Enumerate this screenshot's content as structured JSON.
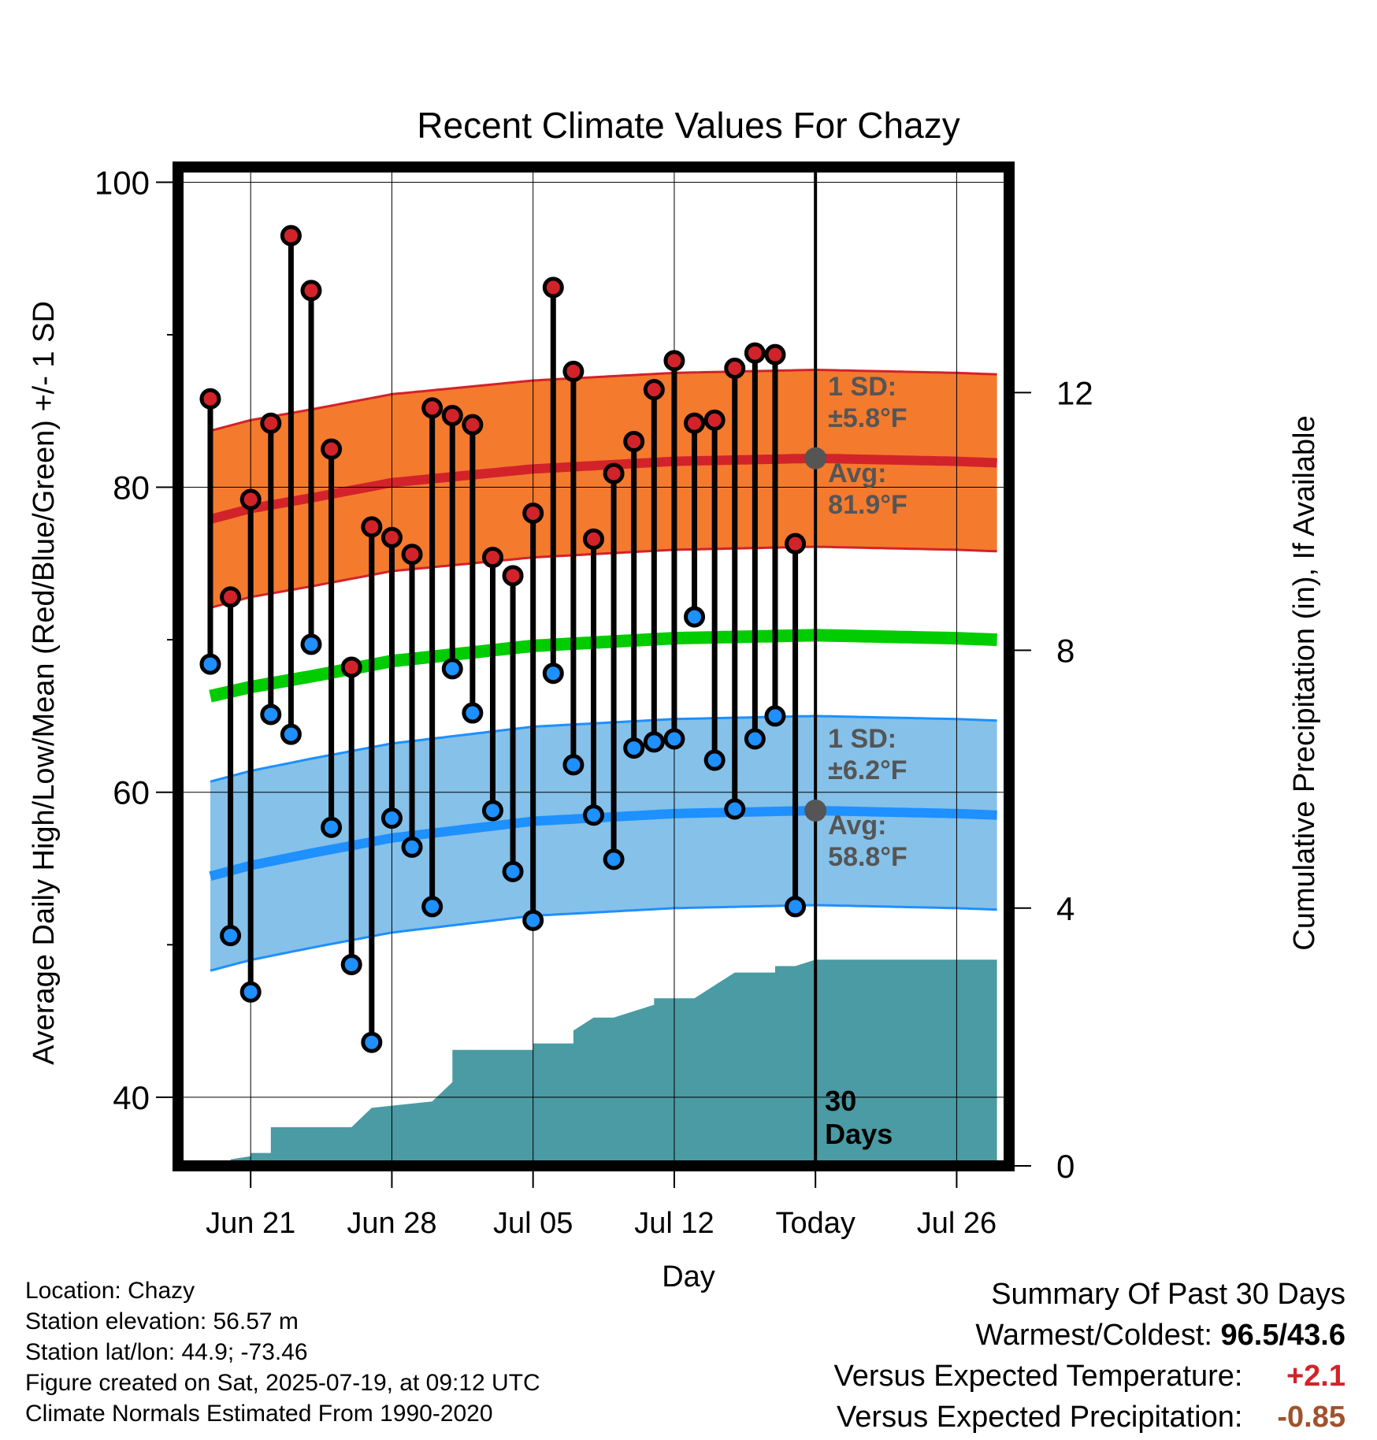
{
  "chart_data": {
    "type": "line",
    "title": "Recent Climate Values For Chazy",
    "xlabel": "Day",
    "ylabel": "Average Daily High/Low/Mean (Red/Blue/Green) +/- 1 SD",
    "y2label": "Cumulative Precipitation (in), If Available",
    "ylim": [
      35.5,
      101
    ],
    "y2lim": [
      0,
      15.5
    ],
    "xlim": [
      -3.6,
      37.6
    ],
    "yticks": [
      40,
      60,
      80,
      100
    ],
    "y2ticks": [
      0,
      4,
      8,
      12
    ],
    "xtick_positions": [
      0,
      7,
      14,
      21,
      28,
      35
    ],
    "xtick_labels": [
      "Jun 21",
      "Jun 28",
      "Jul 05",
      "Jul 12",
      "Today",
      "Jul 26"
    ],
    "grid": true,
    "today_index": 28,
    "today_marker_label": "30 Days",
    "high_obs": [
      85.8,
      72.8,
      79.2,
      84.2,
      96.5,
      92.9,
      82.5,
      68.2,
      77.4,
      76.7,
      75.6,
      85.2,
      84.7,
      84.1,
      75.4,
      74.2,
      78.3,
      93.1,
      87.6,
      76.6,
      80.9,
      83.0,
      86.4,
      88.3,
      84.2,
      84.4,
      87.8,
      88.8,
      88.7,
      76.3
    ],
    "low_obs": [
      68.4,
      50.6,
      46.9,
      65.1,
      63.8,
      69.7,
      57.7,
      48.7,
      43.6,
      58.3,
      56.4,
      52.5,
      68.1,
      65.2,
      58.8,
      54.8,
      51.6,
      67.8,
      61.8,
      58.5,
      55.6,
      62.9,
      63.3,
      63.5,
      71.5,
      62.1,
      58.9,
      63.5,
      65.0,
      52.5
    ],
    "normals_x": [
      -2,
      0,
      3,
      7,
      14,
      21,
      28,
      35,
      37
    ],
    "normal_high": [
      77.9,
      78.6,
      79.3,
      80.3,
      81.2,
      81.7,
      81.9,
      81.7,
      81.6
    ],
    "normal_low": [
      54.5,
      55.2,
      56.0,
      57.0,
      58.1,
      58.6,
      58.8,
      58.6,
      58.5
    ],
    "normal_mean": [
      66.3,
      66.9,
      67.6,
      68.6,
      69.6,
      70.1,
      70.3,
      70.1,
      70.0
    ],
    "sd_high": 5.8,
    "sd_low": 6.2,
    "precip_x": [
      -2,
      -1,
      -1,
      0,
      0,
      1,
      1,
      5,
      5,
      6,
      9,
      9,
      10,
      10,
      14,
      14,
      16,
      16,
      17,
      18,
      18,
      20,
      20,
      22,
      22,
      23,
      24,
      24,
      26,
      26,
      27,
      28,
      28,
      37
    ],
    "precip_cum": [
      0,
      0,
      0.1,
      0.15,
      0.2,
      0.2,
      0.6,
      0.6,
      0.6,
      0.9,
      1.0,
      1.0,
      1.3,
      1.8,
      1.8,
      1.9,
      1.9,
      2.1,
      2.3,
      2.3,
      2.3,
      2.5,
      2.6,
      2.6,
      2.6,
      2.8,
      3.0,
      3.0,
      3.0,
      3.1,
      3.1,
      3.2,
      3.2,
      3.2
    ],
    "annotations": {
      "high_sd_line1": "1 SD:",
      "high_sd_line2": "±5.8°F",
      "high_avg_line1": "Avg:",
      "high_avg_line2": "81.9°F",
      "low_sd_line1": "1 SD:",
      "low_sd_line2": "±6.2°F",
      "low_avg_line1": "Avg:",
      "low_avg_line2": "58.8°F"
    },
    "colors": {
      "high_band": "#f47a2e",
      "high_line": "#d2232a",
      "low_band": "#85c1e9",
      "low_line": "#1e90ff",
      "mean_line": "#00cc00",
      "precip_fill": "#4a9ba3",
      "high_marker": "#d2232a",
      "low_marker": "#1e90ff",
      "annotation_text": "#555555"
    }
  },
  "info": {
    "location": "Location: Chazy",
    "elevation": "Station elevation: 56.57 m",
    "latlon": "Station lat/lon: 44.9; -73.46",
    "created": "Figure created on Sat, 2025-07-19, at 09:12 UTC",
    "normals": "Climate Normals Estimated From 1990-2020"
  },
  "summary": {
    "heading": "Summary Of Past 30 Days",
    "warmest_label": "Warmest/Coldest:",
    "warmest_value": "96.5/43.6",
    "temp_label": "Versus Expected Temperature:",
    "temp_value": "+2.1",
    "temp_color": "#d2232a",
    "precip_label": "Versus Expected Precipitation:",
    "precip_value": "-0.85",
    "precip_color": "#a0522d"
  }
}
